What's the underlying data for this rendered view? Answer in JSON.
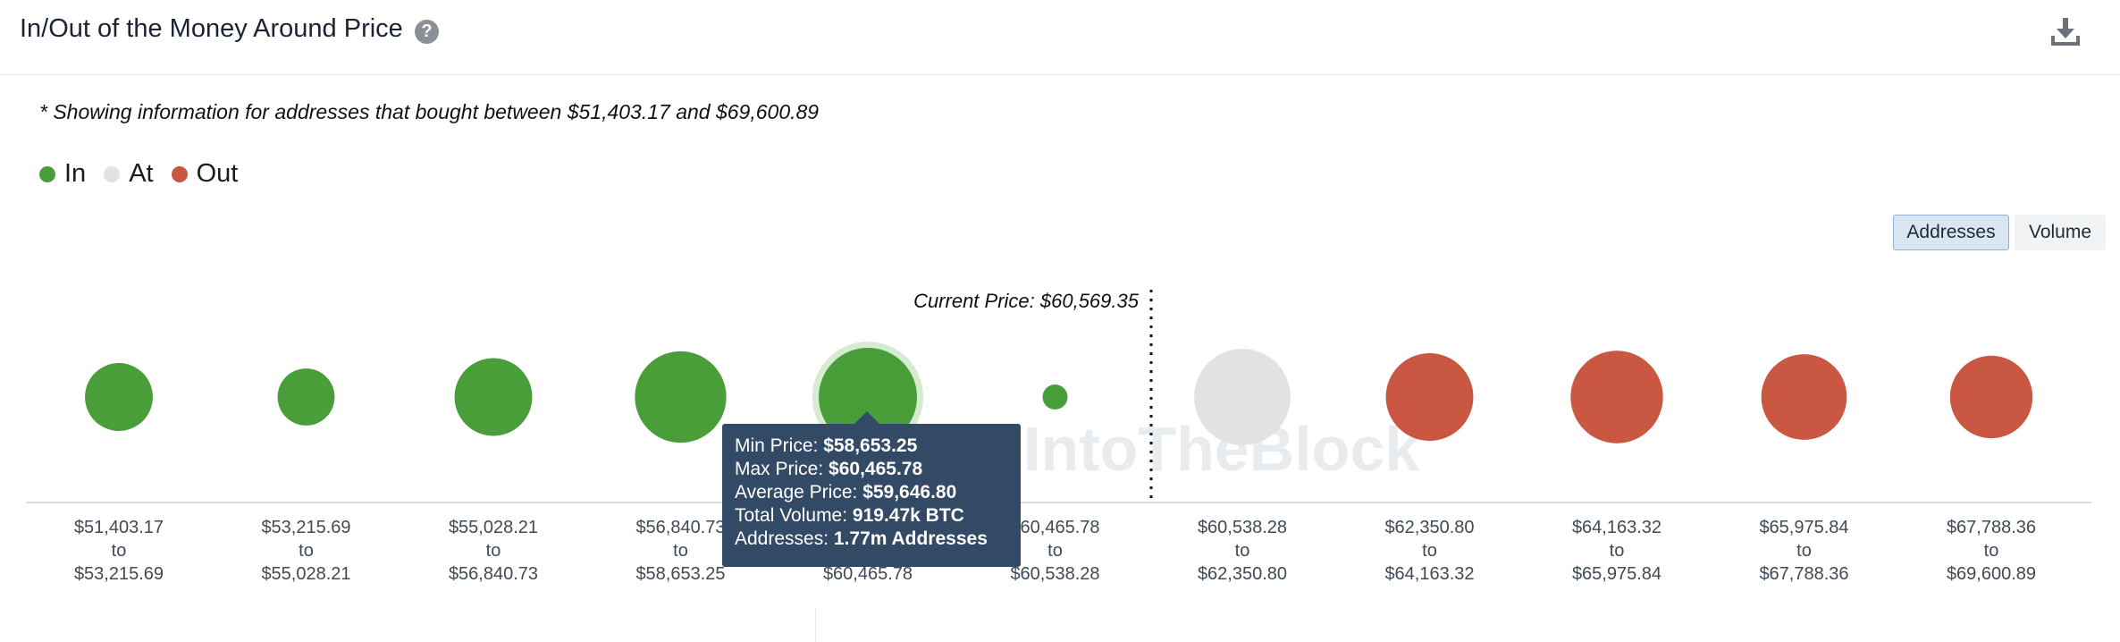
{
  "header": {
    "title": "In/Out of the Money Around Price",
    "help_icon": "question-circle-icon",
    "download_icon": "download-icon"
  },
  "note": "* Showing information for addresses that bought between $51,403.17 and $69,600.89",
  "legend": [
    {
      "label": "In",
      "color": "#4a9e3a"
    },
    {
      "label": "At",
      "color": "#e2e2e2"
    },
    {
      "label": "Out",
      "color": "#c95741"
    }
  ],
  "toggles": {
    "addresses": "Addresses",
    "volume": "Volume",
    "active": "addresses"
  },
  "chart_data": {
    "type": "bubble",
    "current_price_label": "Current Price: $60,569.35",
    "watermark": "IntoTheBlock",
    "buckets": [
      {
        "low": "$51,403.17",
        "sep": "to",
        "high": "$53,215.69",
        "status": "in",
        "size": 0.69
      },
      {
        "low": "$53,215.69",
        "sep": "to",
        "high": "$55,028.21",
        "status": "in",
        "size": 0.58
      },
      {
        "low": "$55,028.21",
        "sep": "to",
        "high": "$56,840.73",
        "status": "in",
        "size": 0.79
      },
      {
        "low": "$56,840.73",
        "sep": "to",
        "high": "$58,653.25",
        "status": "in",
        "size": 0.93
      },
      {
        "low": "$58,653.25",
        "sep": "to",
        "high": "$60,465.78",
        "status": "in",
        "size": 1.0,
        "highlighted": true
      },
      {
        "low": "$60,465.78",
        "sep": "to",
        "high": "$60,538.28",
        "status": "in",
        "size": 0.08
      },
      {
        "low": "$60,538.28",
        "sep": "to",
        "high": "$62,350.80",
        "status": "at",
        "size": 0.98
      },
      {
        "low": "$62,350.80",
        "sep": "to",
        "high": "$64,163.32",
        "status": "out",
        "size": 0.89
      },
      {
        "low": "$64,163.32",
        "sep": "to",
        "high": "$65,975.84",
        "status": "out",
        "size": 0.94
      },
      {
        "low": "$65,975.84",
        "sep": "to",
        "high": "$67,788.36",
        "status": "out",
        "size": 0.87
      },
      {
        "low": "$67,788.36",
        "sep": "to",
        "high": "$69,600.89",
        "status": "out",
        "size": 0.84
      }
    ],
    "colors": {
      "in": "#4a9e3a",
      "at": "#e2e2e2",
      "out": "#c95741",
      "highlight_ring": "#d6ecd0"
    }
  },
  "tooltip": {
    "min_label": "Min Price: ",
    "min_value": "$58,653.25",
    "max_label": "Max Price: ",
    "max_value": "$60,465.78",
    "avg_label": "Average Price: ",
    "avg_value": "$59,646.80",
    "vol_label": "Total Volume: ",
    "vol_value": "919.47k BTC",
    "addr_label": "Addresses: ",
    "addr_value": "1.77m Addresses"
  }
}
